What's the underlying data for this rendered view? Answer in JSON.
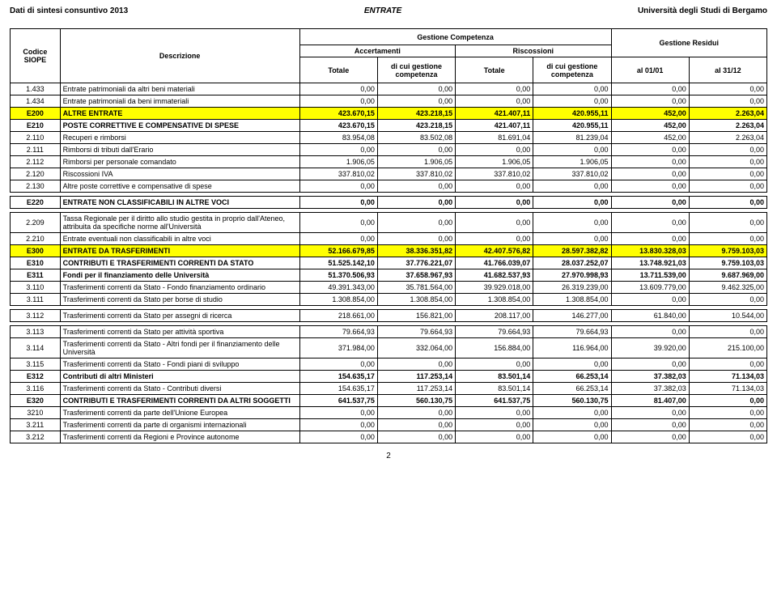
{
  "header": {
    "left": "Dati di sintesi consuntivo 2013",
    "center": "ENTRATE",
    "right": "Università degli Studi di Bergamo"
  },
  "table": {
    "top_headers": {
      "codice": "Codice SIOPE",
      "descrizione": "Descrizione",
      "gestione_competenza": "Gestione Competenza",
      "gestione_residui": "Gestione Residui",
      "accertamenti": "Accertamenti",
      "riscossioni": "Riscossioni",
      "totale": "Totale",
      "dicui": "di cui gestione competenza",
      "al0101": "al 01/01",
      "al3112": "al 31/12"
    },
    "rows": [
      {
        "code": "1.433",
        "desc": "Entrate patrimoniali da altri beni materiali",
        "v": [
          "0,00",
          "0,00",
          "0,00",
          "0,00",
          "0,00",
          "0,00"
        ]
      },
      {
        "code": "1.434",
        "desc": "Entrate patrimoniali da beni immateriali",
        "v": [
          "0,00",
          "0,00",
          "0,00",
          "0,00",
          "0,00",
          "0,00"
        ]
      },
      {
        "yellow": true,
        "code": "E200",
        "desc": "ALTRE ENTRATE",
        "v": [
          "423.670,15",
          "423.218,15",
          "421.407,11",
          "420.955,11",
          "452,00",
          "2.263,04"
        ]
      },
      {
        "bold": true,
        "code": "E210",
        "desc": "POSTE CORRETTIVE E COMPENSATIVE DI SPESE",
        "v": [
          "423.670,15",
          "423.218,15",
          "421.407,11",
          "420.955,11",
          "452,00",
          "2.263,04"
        ]
      },
      {
        "code": "2.110",
        "desc": "Recuperi e rimborsi",
        "v": [
          "83.954,08",
          "83.502,08",
          "81.691,04",
          "81.239,04",
          "452,00",
          "2.263,04"
        ]
      },
      {
        "code": "2.111",
        "desc": "Rimborsi di tributi dall'Erario",
        "v": [
          "0,00",
          "0,00",
          "0,00",
          "0,00",
          "0,00",
          "0,00"
        ]
      },
      {
        "code": "2.112",
        "desc": "Rimborsi per personale comandato",
        "v": [
          "1.906,05",
          "1.906,05",
          "1.906,05",
          "1.906,05",
          "0,00",
          "0,00"
        ]
      },
      {
        "code": "2.120",
        "desc": "Riscossioni IVA",
        "v": [
          "337.810,02",
          "337.810,02",
          "337.810,02",
          "337.810,02",
          "0,00",
          "0,00"
        ]
      },
      {
        "code": "2.130",
        "desc": "Altre poste correttive e compensative di spese",
        "v": [
          "0,00",
          "0,00",
          "0,00",
          "0,00",
          "0,00",
          "0,00"
        ]
      },
      {
        "spacer": true
      },
      {
        "bold": true,
        "code": "E220",
        "desc": "ENTRATE NON CLASSIFICABILI IN ALTRE VOCI",
        "v": [
          "0,00",
          "0,00",
          "0,00",
          "0,00",
          "0,00",
          "0,00"
        ]
      },
      {
        "spacer": true
      },
      {
        "code": "2.209",
        "desc": "Tassa Regionale per il diritto allo studio gestita in proprio dall'Ateneo, attribuita da specifiche norme all'Università",
        "v": [
          "0,00",
          "0,00",
          "0,00",
          "0,00",
          "0,00",
          "0,00"
        ]
      },
      {
        "code": "2.210",
        "desc": "Entrate eventuali non classificabili in altre voci",
        "v": [
          "0,00",
          "0,00",
          "0,00",
          "0,00",
          "0,00",
          "0,00"
        ]
      },
      {
        "yellow": true,
        "code": "E300",
        "desc": "ENTRATE DA TRASFERIMENTI",
        "v": [
          "52.166.679,85",
          "38.336.351,82",
          "42.407.576,82",
          "28.597.382,82",
          "13.830.328,03",
          "9.759.103,03"
        ]
      },
      {
        "bold": true,
        "code": "E310",
        "desc": "CONTRIBUTI E TRASFERIMENTI CORRENTI DA STATO",
        "v": [
          "51.525.142,10",
          "37.776.221,07",
          "41.766.039,07",
          "28.037.252,07",
          "13.748.921,03",
          "9.759.103,03"
        ]
      },
      {
        "bold": true,
        "code": "E311",
        "desc": "Fondi per il finanziamento delle Università",
        "v": [
          "51.370.506,93",
          "37.658.967,93",
          "41.682.537,93",
          "27.970.998,93",
          "13.711.539,00",
          "9.687.969,00"
        ]
      },
      {
        "code": "3.110",
        "desc": "Trasferimenti correnti da Stato - Fondo finanziamento ordinario",
        "v": [
          "49.391.343,00",
          "35.781.564,00",
          "39.929.018,00",
          "26.319.239,00",
          "13.609.779,00",
          "9.462.325,00"
        ]
      },
      {
        "code": "3.111",
        "desc": "Trasferimenti correnti da Stato per borse di studio",
        "v": [
          "1.308.854,00",
          "1.308.854,00",
          "1.308.854,00",
          "1.308.854,00",
          "0,00",
          "0,00"
        ]
      },
      {
        "spacer": true
      },
      {
        "code": "3.112",
        "desc": "Trasferimenti correnti da Stato per assegni di ricerca",
        "v": [
          "218.661,00",
          "156.821,00",
          "208.117,00",
          "146.277,00",
          "61.840,00",
          "10.544,00"
        ]
      },
      {
        "spacer": true
      },
      {
        "code": "3.113",
        "desc": "Trasferimenti correnti da Stato per attività sportiva",
        "v": [
          "79.664,93",
          "79.664,93",
          "79.664,93",
          "79.664,93",
          "0,00",
          "0,00"
        ]
      },
      {
        "code": "3.114",
        "desc": "Trasferimenti correnti da Stato - Altri fondi per il finanziamento delle Università",
        "v": [
          "371.984,00",
          "332.064,00",
          "156.884,00",
          "116.964,00",
          "39.920,00",
          "215.100,00"
        ]
      },
      {
        "code": "3.115",
        "desc": "Trasferimenti correnti da Stato - Fondi piani di sviluppo",
        "v": [
          "0,00",
          "0,00",
          "0,00",
          "0,00",
          "0,00",
          "0,00"
        ]
      },
      {
        "bold": true,
        "code": "E312",
        "desc": "Contributi di altri Ministeri",
        "v": [
          "154.635,17",
          "117.253,14",
          "83.501,14",
          "66.253,14",
          "37.382,03",
          "71.134,03"
        ]
      },
      {
        "code": "3.116",
        "desc": "Trasferimenti correnti da Stato - Contributi diversi",
        "v": [
          "154.635,17",
          "117.253,14",
          "83.501,14",
          "66.253,14",
          "37.382,03",
          "71.134,03"
        ]
      },
      {
        "bold": true,
        "code": "E320",
        "desc": "CONTRIBUTI E TRASFERIMENTI CORRENTI DA ALTRI SOGGETTI",
        "v": [
          "641.537,75",
          "560.130,75",
          "641.537,75",
          "560.130,75",
          "81.407,00",
          "0,00"
        ]
      },
      {
        "code": "3210",
        "desc": "Trasferimenti correnti da parte dell'Unione Europea",
        "v": [
          "0,00",
          "0,00",
          "0,00",
          "0,00",
          "0,00",
          "0,00"
        ]
      },
      {
        "code": "3.211",
        "desc": "Trasferimenti correnti da parte di organismi internazionali",
        "v": [
          "0,00",
          "0,00",
          "0,00",
          "0,00",
          "0,00",
          "0,00"
        ]
      },
      {
        "code": "3.212",
        "desc": "Trasferimenti correnti da Regioni e Province autonome",
        "v": [
          "0,00",
          "0,00",
          "0,00",
          "0,00",
          "0,00",
          "0,00"
        ]
      }
    ]
  },
  "page_number": "2",
  "colors": {
    "yellow": "#ffff00",
    "border": "#000000",
    "bg": "#ffffff"
  }
}
